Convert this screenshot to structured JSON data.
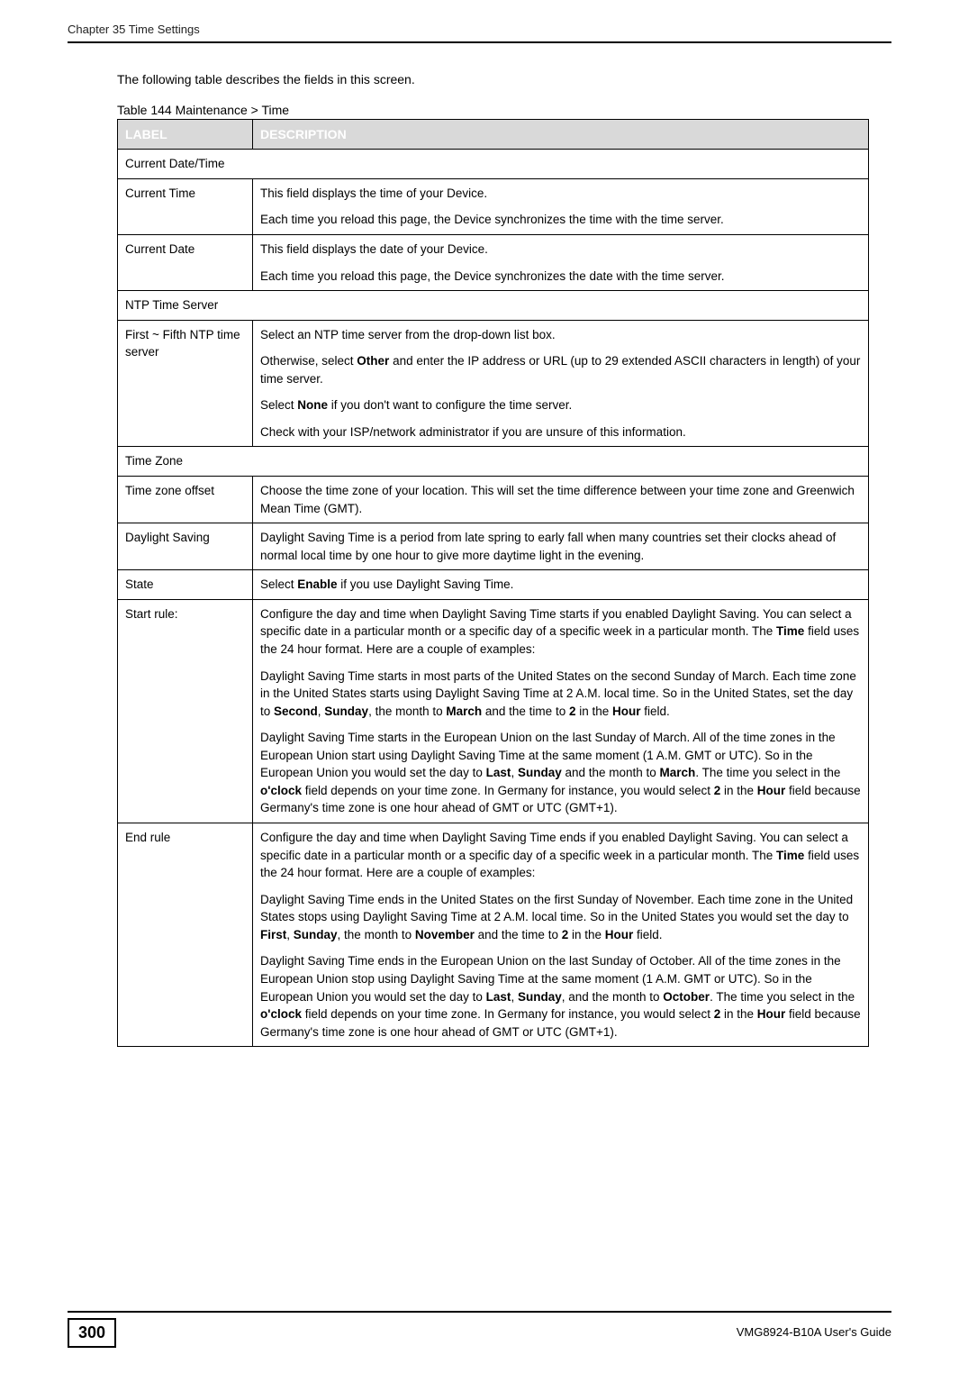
{
  "header": {
    "chapter": "Chapter 35 Time Settings"
  },
  "intro": "The following table describes the fields in this screen.",
  "table": {
    "caption_prefix": "Table 144   ",
    "caption": "Maintenance > Time",
    "col_label": "LABEL",
    "col_desc": "DESCRIPTION",
    "header_bg": "#d9d9d9",
    "header_fg": "#ffffff",
    "sections": [
      {
        "section_title": "Current Date/Time",
        "rows": [
          {
            "label": "Current Time",
            "paras": [
              "This field displays the time of your Device.",
              "Each time you reload this page, the Device synchronizes the time with the time server."
            ]
          },
          {
            "label": "Current Date",
            "paras": [
              "This field displays the date of your Device.",
              "Each time you reload this page, the Device synchronizes the date with the time server."
            ]
          }
        ]
      },
      {
        "section_title": "NTP Time Server",
        "rows": [
          {
            "label": "First ~ Fifth NTP time server",
            "paras": [
              "Select an NTP time server from the drop-down list box.",
              "Otherwise, select <b>Other</b> and enter the IP address or URL (up to 29 extended ASCII characters in length) of your time server.",
              "Select <b>None</b> if you don't want to configure the time server.",
              "Check with your ISP/network administrator if you are unsure of this information."
            ]
          }
        ]
      },
      {
        "section_title": "Time Zone",
        "rows": [
          {
            "label": "Time zone offset",
            "paras": [
              "Choose the time zone of your location. This will set the time difference between your time zone and Greenwich Mean Time (GMT)."
            ]
          },
          {
            "label": "Daylight Saving",
            "paras": [
              "Daylight Saving Time is a period from late spring to early fall when many countries set their clocks ahead of normal local time by one hour to give more daytime light in the evening."
            ]
          },
          {
            "label": "State",
            "paras": [
              "Select <b>Enable</b> if you use Daylight Saving Time."
            ]
          },
          {
            "label": "Start rule:",
            "paras": [
              "Configure the day and time when Daylight Saving Time starts if you enabled Daylight Saving. You can select a specific date in a particular month or a specific day of a specific week in a particular month. The <b>Time</b> field uses the 24 hour format. Here are a couple of examples:",
              "Daylight Saving Time starts in most parts of the United States on the second Sunday of March. Each time zone in the United States starts using Daylight Saving Time at 2 A.M. local time. So in the United States, set the day to <b>Second</b>, <b>Sunday</b>, the month to <b>March</b> and the time to <b>2</b> in the <b>Hour</b> field.",
              "Daylight Saving Time starts in the European Union on the last Sunday of March. All of the time zones in the European Union start using Daylight Saving Time at the same moment (1 A.M. GMT or UTC). So in the European Union you would set the day to <b>Last</b>, <b>Sunday</b> and the month to <b>March</b>. The time you select in the <b>o'clock</b> field depends on your time zone. In Germany for instance, you would select <b>2</b> in the <b>Hour</b> field because Germany's time zone is one hour ahead of GMT or UTC (GMT+1)."
            ]
          },
          {
            "label": "End rule",
            "paras": [
              "Configure the day and time when Daylight Saving Time ends if you enabled Daylight Saving. You can select a specific date in a particular month or a specific day of a specific week in a particular month. The <b>Time</b> field uses the 24 hour format. Here are a couple of examples:",
              "Daylight Saving Time ends in the United States on the first Sunday of November. Each time zone in the United States stops using Daylight Saving Time at 2 A.M. local time. So in the United States you would set the day to <b>First</b>, <b>Sunday</b>, the month to <b>November</b> and the time to <b>2</b> in the <b>Hour</b> field.",
              "Daylight Saving Time ends in the European Union on the last Sunday of October. All of the time zones in the European Union stop using Daylight Saving Time at the same moment (1 A.M. GMT or UTC). So in the European Union you would set the day to <b>Last</b>, <b>Sunday</b>, and the month to <b>October</b>. The time you select in the <b>o'clock</b> field depends on your time zone. In Germany for instance, you would select <b>2</b> in the <b>Hour</b> field because Germany's time zone is one hour ahead of GMT or UTC (GMT+1)."
            ]
          }
        ]
      }
    ]
  },
  "footer": {
    "page": "300",
    "guide": "VMG8924-B10A User's Guide"
  }
}
